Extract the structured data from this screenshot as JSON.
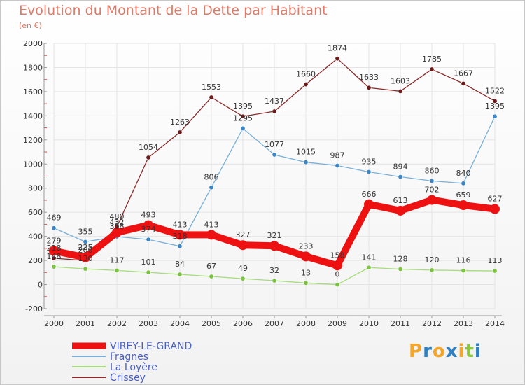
{
  "title": "Evolution du Montant de la Dette par Habitant",
  "subtitle": "(en €)",
  "logo": {
    "text": "Proxiti",
    "letters": [
      {
        "ch": "P",
        "color": "#f4a62a"
      },
      {
        "ch": "r",
        "color": "#2f7fc1"
      },
      {
        "ch": "o",
        "color": "#f4a62a"
      },
      {
        "ch": "x",
        "color": "#2f7fc1"
      },
      {
        "ch": "i",
        "color": "#f4a62a"
      },
      {
        "ch": "t",
        "color": "#8cc63f"
      },
      {
        "ch": "i",
        "color": "#2f7fc1"
      }
    ]
  },
  "chart_data": {
    "type": "line",
    "title": "Evolution du Montant de la Dette par Habitant",
    "ylabel": "(en €)",
    "x": [
      "2000",
      "2001",
      "2002",
      "2003",
      "2004",
      "2005",
      "2006",
      "2007",
      "2008",
      "2009",
      "2010",
      "2011",
      "2012",
      "2013",
      "2014"
    ],
    "yticks": [
      "-200",
      "0",
      "200",
      "400",
      "600",
      "800",
      "1000",
      "1200",
      "1400",
      "1600",
      "1800",
      "2000"
    ],
    "ylim": [
      -200,
      2000
    ],
    "grid": true,
    "legend": "bottom-left",
    "series": [
      {
        "name": "VIREY-LE-GRAND",
        "color": "#ee1111",
        "marker_color": "#ee1111",
        "values": [
          279,
          225,
          432,
          493,
          413,
          413,
          327,
          321,
          233,
          158,
          666,
          613,
          702,
          659,
          627
        ],
        "labels": [
          "279",
          "225",
          "432",
          "493",
          "413",
          "413",
          "327",
          "321",
          "233",
          "158",
          "666",
          "613",
          "702",
          "659",
          "627"
        ]
      },
      {
        "name": "Fragnes",
        "color": "#7ab0d8",
        "marker_color": "#3d86c6",
        "values": [
          469,
          355,
          398,
          374,
          318,
          806,
          1295,
          1077,
          1015,
          987,
          935,
          894,
          860,
          840,
          1395
        ],
        "labels": [
          "469",
          "355",
          "398",
          "374",
          "318",
          "806",
          "1295",
          "1077",
          "1015",
          "987",
          "935",
          "894",
          "860",
          "840",
          "1395"
        ]
      },
      {
        "name": "La Loyère",
        "color": "#a6dc7a",
        "marker_color": "#7cc242",
        "values": [
          148,
          130,
          117,
          101,
          84,
          67,
          49,
          32,
          13,
          0,
          141,
          128,
          120,
          116,
          113
        ],
        "labels": [
          "148",
          "130",
          "117",
          "101",
          "84",
          "67",
          "49",
          "32",
          "13",
          "0",
          "141",
          "128",
          "120",
          "116",
          "113"
        ]
      },
      {
        "name": "Crissey",
        "color": "#8b2a2a",
        "marker_color": "#6b1a1a",
        "values": [
          218,
          200,
          480,
          1054,
          1263,
          1553,
          1395,
          1437,
          1660,
          1874,
          1633,
          1603,
          1785,
          1667,
          1522
        ],
        "labels": [
          "218",
          "200",
          "480",
          "1054",
          "1263",
          "1553",
          "1395",
          "1437",
          "1660",
          "1874",
          "1633",
          "1603",
          "1785",
          "1667",
          "1522"
        ]
      }
    ]
  }
}
